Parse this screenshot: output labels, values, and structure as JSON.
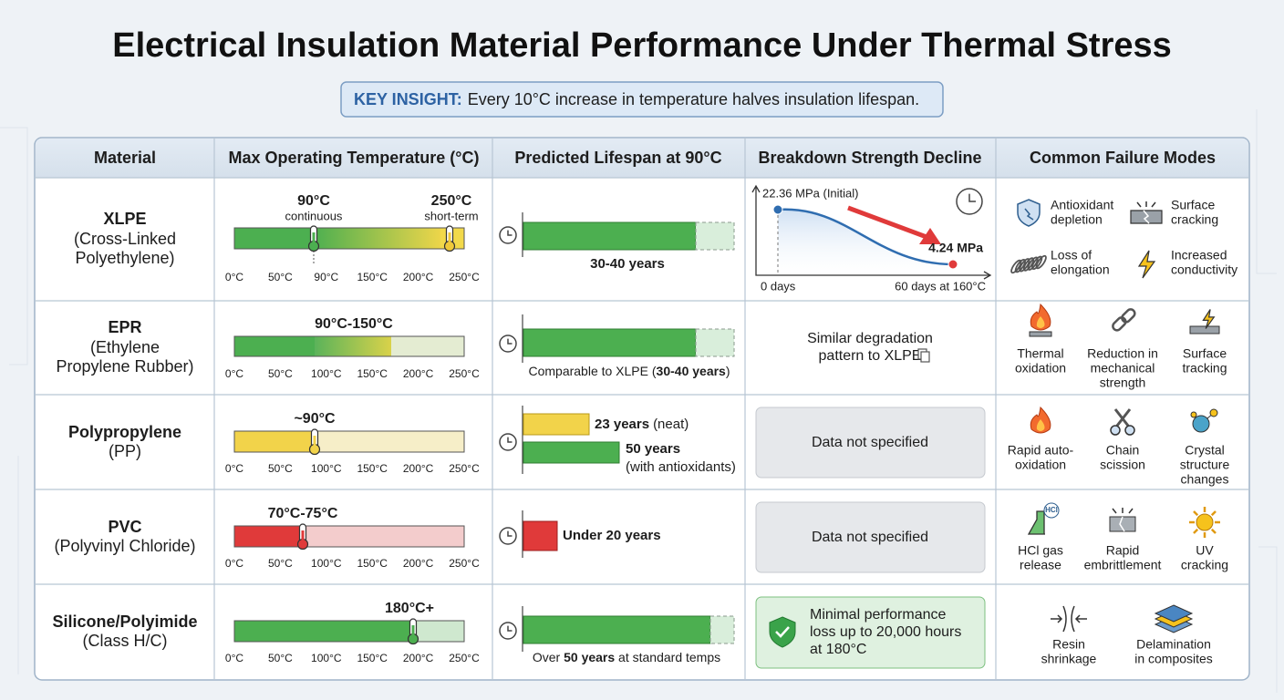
{
  "header": {
    "title": "Electrical Insulation Material Performance Under Thermal Stress",
    "insight_label": "KEY INSIGHT:",
    "insight_text": "Every 10°C increase in temperature halves insulation lifespan."
  },
  "table": {
    "columns": [
      "Material",
      "Max Operating Temperature (°C)",
      "Predicted Lifespan at 90°C",
      "Breakdown Strength Decline",
      "Common Failure Modes"
    ],
    "rows": [
      {
        "material": "XLPE",
        "material_detail": [
          "(Cross-Linked",
          "Polyethylene)"
        ],
        "temperature": {
          "markers": [
            {
              "label": "90°C",
              "note": "continuous"
            },
            {
              "label": "250°C",
              "note": "short-term"
            }
          ],
          "ticks": [
            "0°C",
            "50°C",
            "90°C",
            "150°C",
            "200°C",
            "250°C"
          ]
        },
        "lifespan": {
          "text": "30-40 years"
        },
        "breakdown": {
          "start": "22.36 MPa (Initial)",
          "end": "4.24 MPa",
          "x_start": "0 days",
          "x_end": "60 days at 160°C"
        },
        "failure_modes": [
          {
            "label": [
              "Antioxidant",
              "depletion"
            ]
          },
          {
            "label": [
              "Surface",
              "cracking"
            ]
          },
          {
            "label": [
              "Loss of",
              "elongation"
            ]
          },
          {
            "label": [
              "Increased",
              "conductivity"
            ]
          }
        ]
      },
      {
        "material": "EPR",
        "material_detail": [
          "(Ethylene",
          "Propylene Rubber)"
        ],
        "temperature": {
          "markers": [
            {
              "label": "90°C-150°C"
            }
          ],
          "ticks": [
            "0°C",
            "50°C",
            "100°C",
            "150°C",
            "200°C",
            "250°C"
          ]
        },
        "lifespan": {
          "parts": [
            "Comparable to XLPE (",
            "30-40 years",
            ")"
          ]
        },
        "breakdown": {
          "text": [
            "Similar degradation",
            "pattern to XLPE"
          ]
        },
        "failure_modes": [
          {
            "label": [
              "Thermal",
              "oxidation"
            ]
          },
          {
            "label": [
              "Reduction in",
              "mechanical",
              "strength"
            ]
          },
          {
            "label": [
              "Surface",
              "tracking"
            ]
          }
        ]
      },
      {
        "material": "Polypropylene",
        "material_detail": [
          "(PP)"
        ],
        "temperature": {
          "markers": [
            {
              "label": "~90°C"
            }
          ],
          "ticks": [
            "0°C",
            "50°C",
            "100°C",
            "150°C",
            "200°C",
            "250°C"
          ]
        },
        "lifespan": {
          "items": [
            {
              "value": "23 years",
              "note": "(neat)"
            },
            {
              "value": "50 years",
              "note": "(with antioxidants)"
            }
          ]
        },
        "breakdown": {
          "text": "Data not specified"
        },
        "failure_modes": [
          {
            "label": [
              "Rapid auto-",
              "oxidation"
            ]
          },
          {
            "label": [
              "Chain",
              "scission"
            ]
          },
          {
            "label": [
              "Crystal",
              "structure",
              "changes"
            ]
          }
        ]
      },
      {
        "material": "PVC",
        "material_detail": [
          "(Polyvinyl Chloride)"
        ],
        "temperature": {
          "markers": [
            {
              "label": "70°C-75°C"
            }
          ],
          "ticks": [
            "0°C",
            "50°C",
            "100°C",
            "150°C",
            "200°C",
            "250°C"
          ]
        },
        "lifespan": {
          "text": "Under 20 years"
        },
        "breakdown": {
          "text": "Data not specified"
        },
        "failure_modes": [
          {
            "label": [
              "HCl gas",
              "release"
            ],
            "icon_text": "HCl"
          },
          {
            "label": [
              "Rapid",
              "embrittlement"
            ]
          },
          {
            "label": [
              "UV",
              "cracking"
            ]
          }
        ]
      },
      {
        "material": "Silicone/Polyimide",
        "material_detail": [
          "(Class H/C)"
        ],
        "temperature": {
          "markers": [
            {
              "label": "180°C+"
            }
          ],
          "ticks": [
            "0°C",
            "50°C",
            "100°C",
            "150°C",
            "200°C",
            "250°C"
          ]
        },
        "lifespan": {
          "parts": [
            "Over ",
            "50 years",
            " at standard temps"
          ]
        },
        "breakdown": {
          "text": [
            "Minimal performance",
            "loss up to 20,000 hours",
            "at 180°C"
          ]
        },
        "failure_modes": [
          {
            "label": [
              "Resin",
              "shrinkage"
            ]
          },
          {
            "label": [
              "Delamination",
              "in composites"
            ]
          }
        ]
      }
    ]
  }
}
